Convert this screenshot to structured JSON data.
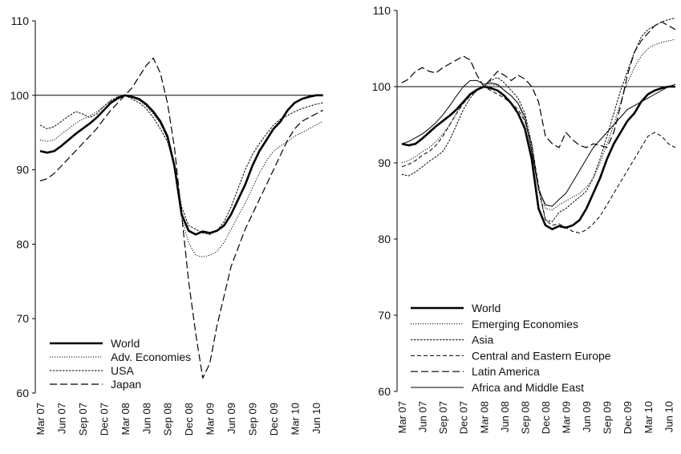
{
  "chart_data": [
    {
      "type": "line",
      "title": "",
      "xlabel": "",
      "ylabel": "",
      "ylim": [
        60,
        110
      ],
      "yticks": [
        60,
        70,
        80,
        90,
        100,
        110
      ],
      "reference_line": 100,
      "x": [
        "Mar 07",
        "Apr 07",
        "May 07",
        "Jun 07",
        "Jul 07",
        "Aug 07",
        "Sep 07",
        "Oct 07",
        "Nov 07",
        "Dec 07",
        "Jan 08",
        "Feb 08",
        "Mar 08",
        "Apr 08",
        "May 08",
        "Jun 08",
        "Jul 08",
        "Aug 08",
        "Sep 08",
        "Oct 08",
        "Nov 08",
        "Dec 08",
        "Jan 09",
        "Feb 09",
        "Mar 09",
        "Apr 09",
        "May 09",
        "Jun 09",
        "Jul 09",
        "Aug 09",
        "Sep 09",
        "Oct 09",
        "Nov 09",
        "Dec 09",
        "Jan 10",
        "Feb 10",
        "Mar 10",
        "Apr 10",
        "May 10",
        "Jun 10",
        "Jul 10"
      ],
      "xtick_labels": [
        "Mar 07",
        "Jun 07",
        "Sep 07",
        "Dec 07",
        "Mar 08",
        "Jun 08",
        "Sep 08",
        "Dec 08",
        "Mar 09",
        "Jun 09",
        "Sep 09",
        "Dec 09",
        "Mar 10",
        "Jun 10"
      ],
      "legend_position": "bottom-left",
      "series": [
        {
          "name": "World",
          "style": "thick",
          "values": [
            92.5,
            92.3,
            92.5,
            93.2,
            94.0,
            94.8,
            95.5,
            96.2,
            97.0,
            98.0,
            99.0,
            99.6,
            100.0,
            99.8,
            99.5,
            98.8,
            97.8,
            96.5,
            94.5,
            90.5,
            84.0,
            81.8,
            81.3,
            81.7,
            81.5,
            81.8,
            82.5,
            84.0,
            86.0,
            88.0,
            90.5,
            92.5,
            94.0,
            95.5,
            96.5,
            98.0,
            99.0,
            99.5,
            99.8,
            100.0,
            100.0
          ]
        },
        {
          "name": "Adv. Economies",
          "style": "dotted",
          "values": [
            94.0,
            93.8,
            94.0,
            94.8,
            95.5,
            96.2,
            96.8,
            97.2,
            97.8,
            98.5,
            99.3,
            99.8,
            100.0,
            99.7,
            99.3,
            98.5,
            97.5,
            96.2,
            94.2,
            90.0,
            83.5,
            80.2,
            78.5,
            78.3,
            78.5,
            79.0,
            80.2,
            82.0,
            83.8,
            85.5,
            87.5,
            89.5,
            91.2,
            92.5,
            93.2,
            93.8,
            94.5,
            95.0,
            95.5,
            96.0,
            96.5
          ]
        },
        {
          "name": "USA",
          "style": "short-dash",
          "values": [
            96.0,
            95.5,
            95.8,
            96.5,
            97.2,
            97.8,
            97.5,
            97.0,
            97.5,
            98.5,
            99.3,
            99.8,
            100.0,
            99.5,
            99.0,
            98.2,
            97.0,
            95.5,
            93.8,
            90.5,
            85.0,
            82.5,
            82.0,
            81.5,
            81.3,
            81.8,
            83.0,
            85.0,
            87.5,
            90.0,
            92.0,
            93.5,
            94.8,
            96.0,
            96.8,
            97.3,
            97.8,
            98.2,
            98.5,
            98.8,
            99.0
          ]
        },
        {
          "name": "Japan",
          "style": "long-dash",
          "values": [
            88.5,
            88.8,
            89.5,
            90.5,
            91.5,
            92.5,
            93.5,
            94.5,
            95.5,
            96.8,
            98.0,
            99.0,
            100.0,
            101.0,
            102.5,
            104.0,
            105.0,
            103.0,
            99.0,
            93.0,
            84.0,
            75.0,
            68.0,
            62.0,
            64.0,
            69.0,
            73.0,
            77.0,
            79.5,
            82.0,
            84.0,
            86.0,
            88.0,
            90.0,
            92.0,
            94.0,
            95.5,
            96.5,
            97.0,
            97.5,
            98.0
          ]
        }
      ]
    },
    {
      "type": "line",
      "title": "",
      "xlabel": "",
      "ylabel": "",
      "ylim": [
        60,
        110
      ],
      "yticks": [
        60,
        70,
        80,
        90,
        100,
        110
      ],
      "reference_line": 100,
      "x": [
        "Mar 07",
        "Apr 07",
        "May 07",
        "Jun 07",
        "Jul 07",
        "Aug 07",
        "Sep 07",
        "Oct 07",
        "Nov 07",
        "Dec 07",
        "Jan 08",
        "Feb 08",
        "Mar 08",
        "Apr 08",
        "May 08",
        "Jun 08",
        "Jul 08",
        "Aug 08",
        "Sep 08",
        "Oct 08",
        "Nov 08",
        "Dec 08",
        "Jan 09",
        "Feb 09",
        "Mar 09",
        "Apr 09",
        "May 09",
        "Jun 09",
        "Jul 09",
        "Aug 09",
        "Sep 09",
        "Oct 09",
        "Nov 09",
        "Dec 09",
        "Jan 10",
        "Feb 10",
        "Mar 10",
        "Apr 10",
        "May 10",
        "Jun 10",
        "Jul 10"
      ],
      "xtick_labels": [
        "Mar 07",
        "Jun 07",
        "Sep 07",
        "Dec 07",
        "Mar 08",
        "Jun 08",
        "Sep 08",
        "Dec 08",
        "Mar 09",
        "Jun 09",
        "Sep 09",
        "Dec 09",
        "Mar 10",
        "Jun 10"
      ],
      "legend_position": "bottom-left",
      "series": [
        {
          "name": "World",
          "style": "thick",
          "values": [
            92.5,
            92.3,
            92.5,
            93.2,
            94.0,
            94.8,
            95.5,
            96.2,
            97.0,
            98.0,
            99.0,
            99.6,
            100.0,
            99.8,
            99.5,
            98.8,
            97.8,
            96.5,
            94.5,
            90.5,
            84.0,
            81.8,
            81.3,
            81.7,
            81.5,
            81.8,
            82.5,
            84.0,
            86.0,
            88.0,
            90.5,
            92.5,
            94.0,
            95.5,
            96.5,
            98.0,
            99.0,
            99.5,
            99.8,
            100.0,
            100.0
          ]
        },
        {
          "name": "Emerging Economies",
          "style": "dotted",
          "values": [
            90.0,
            90.3,
            90.8,
            91.5,
            92.0,
            92.8,
            93.8,
            95.0,
            96.5,
            98.0,
            99.0,
            99.7,
            100.0,
            100.3,
            100.2,
            99.5,
            98.8,
            97.8,
            95.5,
            92.0,
            87.0,
            84.0,
            83.8,
            84.5,
            85.0,
            85.5,
            86.0,
            86.8,
            88.0,
            90.0,
            92.5,
            95.0,
            98.0,
            100.5,
            102.5,
            104.0,
            105.0,
            105.5,
            105.8,
            106.0,
            106.2
          ]
        },
        {
          "name": "Asia",
          "style": "short-dash",
          "values": [
            88.5,
            88.3,
            88.8,
            89.5,
            90.2,
            90.8,
            91.5,
            93.0,
            95.0,
            97.0,
            98.5,
            99.5,
            100.0,
            100.8,
            101.2,
            100.5,
            99.5,
            98.5,
            96.5,
            92.5,
            86.5,
            82.5,
            82.3,
            83.5,
            84.0,
            84.8,
            85.5,
            86.3,
            88.0,
            90.5,
            93.5,
            96.5,
            99.5,
            102.0,
            104.5,
            106.5,
            107.5,
            108.0,
            108.5,
            108.8,
            109.0
          ]
        },
        {
          "name": "Central and Eastern Europe",
          "style": "medium-dash",
          "values": [
            89.5,
            89.8,
            90.3,
            91.0,
            91.5,
            92.3,
            93.5,
            95.0,
            96.5,
            97.8,
            98.8,
            99.5,
            100.0,
            99.5,
            99.0,
            98.5,
            97.8,
            97.0,
            95.5,
            92.5,
            87.0,
            82.5,
            81.8,
            82.0,
            81.5,
            81.0,
            80.8,
            81.2,
            82.0,
            83.0,
            84.5,
            86.0,
            87.5,
            89.0,
            90.5,
            92.0,
            93.5,
            94.0,
            93.5,
            92.5,
            92.0
          ]
        },
        {
          "name": "Latin America",
          "style": "long-dash",
          "values": [
            100.5,
            101.0,
            102.0,
            102.5,
            102.0,
            101.8,
            102.5,
            103.0,
            103.5,
            104.0,
            103.5,
            101.5,
            100.0,
            101.0,
            102.0,
            101.5,
            100.8,
            101.5,
            101.0,
            100.0,
            98.0,
            93.5,
            92.5,
            92.0,
            94.0,
            93.0,
            92.3,
            92.0,
            92.5,
            92.3,
            92.0,
            94.0,
            97.5,
            101.5,
            104.5,
            106.0,
            107.0,
            108.0,
            108.5,
            108.0,
            107.5
          ]
        },
        {
          "name": "Africa and Middle East",
          "style": "solid",
          "values": [
            92.5,
            92.8,
            93.3,
            93.8,
            94.5,
            95.3,
            96.3,
            97.5,
            98.8,
            100.0,
            100.8,
            100.8,
            100.3,
            100.5,
            100.3,
            99.5,
            98.8,
            97.8,
            96.0,
            91.5,
            86.5,
            84.5,
            84.3,
            85.2,
            86.0,
            87.5,
            89.0,
            90.5,
            92.0,
            93.0,
            94.0,
            95.0,
            96.0,
            97.0,
            97.5,
            98.0,
            98.5,
            99.0,
            99.5,
            100.0,
            100.3
          ]
        }
      ]
    }
  ]
}
